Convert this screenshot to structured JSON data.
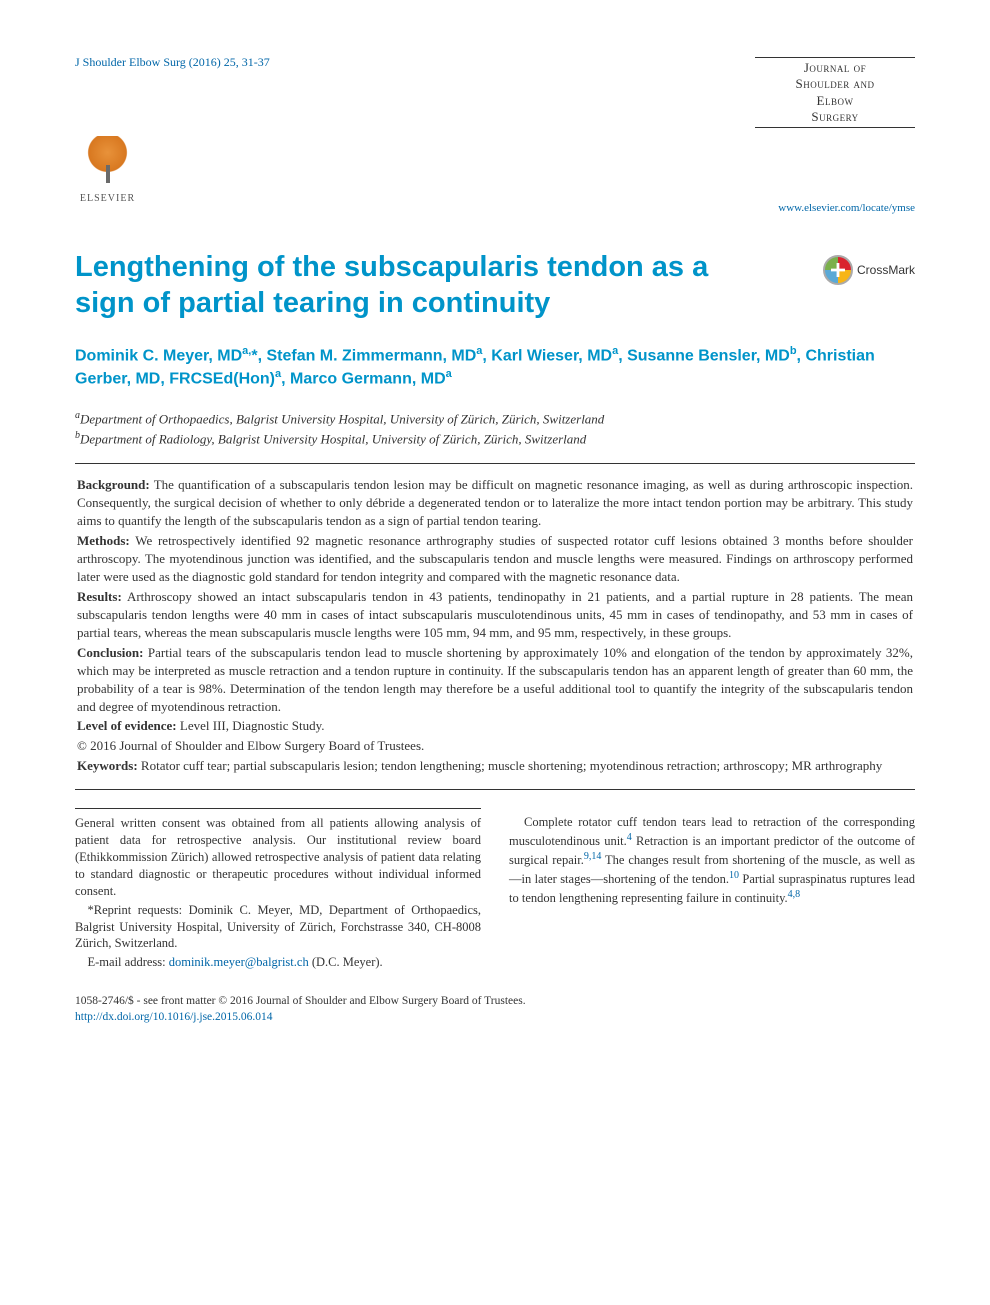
{
  "header": {
    "citation": "J Shoulder Elbow Surg (2016) 25, 31-37",
    "journal_line1": "Journal of",
    "journal_line2": "Shoulder and",
    "journal_line3": "Elbow",
    "journal_line4": "Surgery",
    "journal_link": "www.elsevier.com/locate/ymse",
    "publisher_label": "ELSEVIER"
  },
  "title": "Lengthening of the subscapularis tendon as a sign of partial tearing in continuity",
  "crossmark_label": "CrossMark",
  "authors_html": "Dominik C. Meyer, MD<sup>a,</sup>*, Stefan M. Zimmermann, MD<sup>a</sup>, Karl Wieser, MD<sup>a</sup>, Susanne Bensler, MD<sup>b</sup>, Christian Gerber, MD, FRCSEd(Hon)<sup>a</sup>, Marco Germann, MD<sup>a</sup>",
  "affiliations": {
    "a": "Department of Orthopaedics, Balgrist University Hospital, University of Zürich, Zürich, Switzerland",
    "b": "Department of Radiology, Balgrist University Hospital, University of Zürich, Zürich, Switzerland"
  },
  "abstract": {
    "background_label": "Background:",
    "background": "The quantification of a subscapularis tendon lesion may be difficult on magnetic resonance imaging, as well as during arthroscopic inspection. Consequently, the surgical decision of whether to only débride a degenerated tendon or to lateralize the more intact tendon portion may be arbitrary. This study aims to quantify the length of the subscapularis tendon as a sign of partial tendon tearing.",
    "methods_label": "Methods:",
    "methods": "We retrospectively identified 92 magnetic resonance arthrography studies of suspected rotator cuff lesions obtained 3 months before shoulder arthroscopy. The myotendinous junction was identified, and the subscapularis tendon and muscle lengths were measured. Findings on arthroscopy performed later were used as the diagnostic gold standard for tendon integrity and compared with the magnetic resonance data.",
    "results_label": "Results:",
    "results": "Arthroscopy showed an intact subscapularis tendon in 43 patients, tendinopathy in 21 patients, and a partial rupture in 28 patients. The mean subscapularis tendon lengths were 40 mm in cases of intact subscapularis musculotendinous units, 45 mm in cases of tendinopathy, and 53 mm in cases of partial tears, whereas the mean subscapularis muscle lengths were 105 mm, 94 mm, and 95 mm, respectively, in these groups.",
    "conclusion_label": "Conclusion:",
    "conclusion": "Partial tears of the subscapularis tendon lead to muscle shortening by approximately 10% and elongation of the tendon by approximately 32%, which may be interpreted as muscle retraction and a tendon rupture in continuity. If the subscapularis tendon has an apparent length of greater than 60 mm, the probability of a tear is 98%. Determination of the tendon length may therefore be a useful additional tool to quantify the integrity of the subscapularis tendon and degree of myotendinous retraction.",
    "loe_label": "Level of evidence:",
    "loe": "Level III, Diagnostic Study.",
    "copyright": "© 2016 Journal of Shoulder and Elbow Surgery Board of Trustees.",
    "keywords_label": "Keywords:",
    "keywords": "Rotator cuff tear; partial subscapularis lesion; tendon lengthening; muscle shortening; myotendinous retraction; arthroscopy; MR arthrography"
  },
  "footer_left": {
    "consent": "General written consent was obtained from all patients allowing analysis of patient data for retrospective analysis. Our institutional review board (Ethikkommission Zürich) allowed retrospective analysis of patient data relating to standard diagnostic or therapeutic procedures without individual informed consent.",
    "reprint_label": "*Reprint requests:",
    "reprint": "Dominik C. Meyer, MD, Department of Orthopaedics, Balgrist University Hospital, University of Zürich, Forchstrasse 340, CH-8008 Zürich, Switzerland.",
    "email_label": "E-mail address:",
    "email": "dominik.meyer@balgrist.ch",
    "email_suffix": "(D.C. Meyer)."
  },
  "footer_right": {
    "para": "Complete rotator cuff tendon tears lead to retraction of the corresponding musculotendinous unit.",
    "ref1": "4",
    "para2": " Retraction is an important predictor of the outcome of surgical repair.",
    "ref2": "9,14",
    "para3": " The changes result from shortening of the muscle, as well as—in later stages—shortening of the tendon.",
    "ref3": "10",
    "para4": " Partial supraspinatus ruptures lead to tendon lengthening representing failure in continuity.",
    "ref4": "4,8"
  },
  "bottom": {
    "line1": "1058-2746/$ - see front matter © 2016 Journal of Shoulder and Elbow Surgery Board of Trustees.",
    "doi": "http://dx.doi.org/10.1016/j.jse.2015.06.014"
  },
  "colors": {
    "accent_blue": "#0094c9",
    "link_blue": "#0066a8",
    "text": "#333333",
    "rule": "#333333"
  }
}
